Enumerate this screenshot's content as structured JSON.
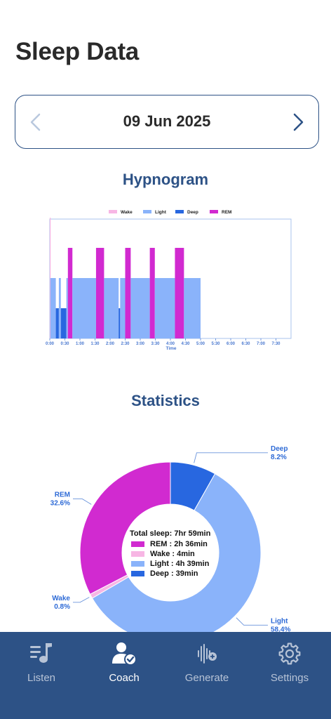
{
  "page": {
    "title": "Sleep Data"
  },
  "date_picker": {
    "date": "09 Jun 2025",
    "prev_icon": "chevron-left-icon",
    "next_icon": "chevron-right-icon"
  },
  "sections": {
    "hypnogram_title": "Hypnogram",
    "statistics_title": "Statistics"
  },
  "colors": {
    "wake": "#f7b6e4",
    "light": "#8ab3fa",
    "deep": "#2867e0",
    "rem": "#d12ad0",
    "accent": "#2d5286"
  },
  "chart_data": [
    {
      "type": "bar",
      "name": "Hypnogram",
      "xlabel": "Time",
      "ylabel": "",
      "legend": [
        "Wake",
        "Light",
        "Deep",
        "REM"
      ],
      "legend_position": "top",
      "x_ticks": [
        "0:00",
        "0:30",
        "1:00",
        "1:30",
        "2:00",
        "2:30",
        "3:00",
        "3:30",
        "4:00",
        "4:30",
        "5:00",
        "5:30",
        "6:00",
        "6:30",
        "7:00",
        "7:30"
      ],
      "x_range_minutes": [
        0,
        480
      ],
      "stage_levels": {
        "Deep": 1,
        "Light": 2,
        "REM": 3,
        "Wake": 4
      },
      "segments": [
        {
          "stage": "Wake",
          "start": 0,
          "end": 1
        },
        {
          "stage": "Light",
          "start": 1,
          "end": 12
        },
        {
          "stage": "Deep",
          "start": 12,
          "end": 18
        },
        {
          "stage": "Light",
          "start": 18,
          "end": 22
        },
        {
          "stage": "Deep",
          "start": 22,
          "end": 33
        },
        {
          "stage": "Light",
          "start": 33,
          "end": 36
        },
        {
          "stage": "REM",
          "start": 36,
          "end": 45
        },
        {
          "stage": "Light",
          "start": 45,
          "end": 92
        },
        {
          "stage": "REM",
          "start": 92,
          "end": 108
        },
        {
          "stage": "Light",
          "start": 108,
          "end": 137
        },
        {
          "stage": "Deep",
          "start": 137,
          "end": 140
        },
        {
          "stage": "Light",
          "start": 140,
          "end": 150
        },
        {
          "stage": "REM",
          "start": 150,
          "end": 161
        },
        {
          "stage": "Light",
          "start": 161,
          "end": 199
        },
        {
          "stage": "REM",
          "start": 199,
          "end": 209
        },
        {
          "stage": "Light",
          "start": 209,
          "end": 249
        },
        {
          "stage": "REM",
          "start": 249,
          "end": 267
        },
        {
          "stage": "Light",
          "start": 267,
          "end": 300
        }
      ]
    },
    {
      "type": "pie",
      "name": "Statistics",
      "donut": true,
      "slices": [
        {
          "label": "Deep",
          "percent": 8.2,
          "percent_label": "8.2%"
        },
        {
          "label": "Light",
          "percent": 58.4,
          "percent_label": "58.4%"
        },
        {
          "label": "Wake",
          "percent": 0.8,
          "percent_label": "0.8%"
        },
        {
          "label": "REM",
          "percent": 32.6,
          "percent_label": "32.6%"
        }
      ],
      "center_summary": {
        "total": "Total sleep: 7hr 59min",
        "rows": [
          {
            "stage": "REM",
            "text": "REM : 2h 36min"
          },
          {
            "stage": "Wake",
            "text": "Wake : 4min"
          },
          {
            "stage": "Light",
            "text": "Light : 4h 39min"
          },
          {
            "stage": "Deep",
            "text": "Deep : 39min"
          }
        ]
      }
    }
  ],
  "bottom_nav": {
    "items": [
      {
        "label": "Listen",
        "icon": "music-list-icon",
        "active": false
      },
      {
        "label": "Coach",
        "icon": "user-check-icon",
        "active": true
      },
      {
        "label": "Generate",
        "icon": "waveform-add-icon",
        "active": false
      },
      {
        "label": "Settings",
        "icon": "gear-icon",
        "active": false
      }
    ]
  }
}
